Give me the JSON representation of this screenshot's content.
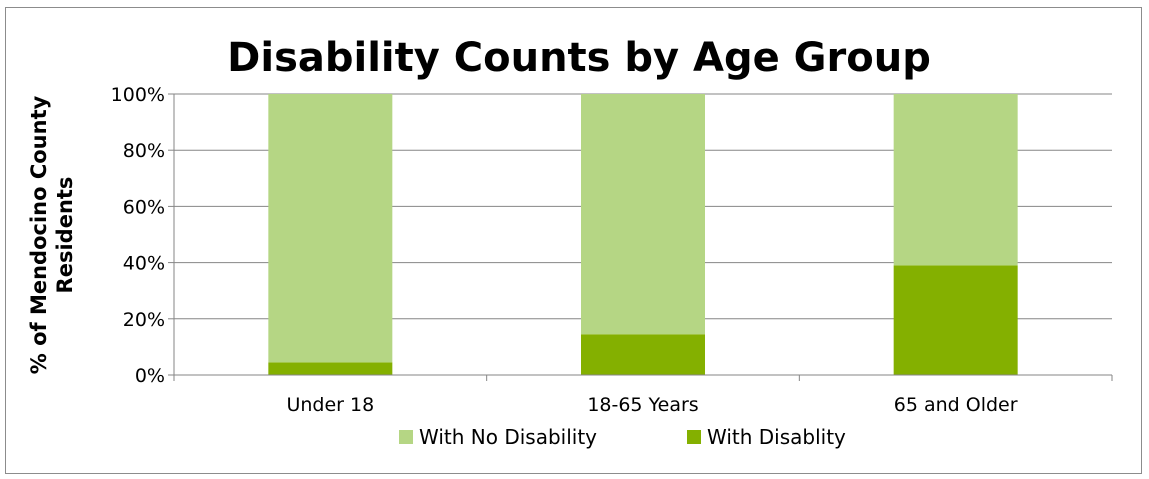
{
  "chart_data": {
    "type": "bar",
    "stacked": true,
    "title": "Disability Counts by Age Group",
    "ylabel_lines": [
      "% of Mendocino County",
      "Residents"
    ],
    "xlabel": "",
    "categories": [
      "Under 18",
      "18-65 Years",
      "65 and Older"
    ],
    "y_ticks": [
      "0%",
      "20%",
      "40%",
      "60%",
      "80%",
      "100%"
    ],
    "ylim": [
      0,
      100
    ],
    "series": [
      {
        "name": "With Disablity",
        "color": "#84b000",
        "values": [
          4.5,
          14.5,
          39
        ]
      },
      {
        "name": "With No Disability",
        "color": "#b5d684",
        "values": [
          95.5,
          85.5,
          61
        ]
      }
    ],
    "legend_order": [
      "With No Disability",
      "With Disablity"
    ],
    "legend_position": "bottom",
    "grid": true,
    "gridline_color": "#868686"
  }
}
